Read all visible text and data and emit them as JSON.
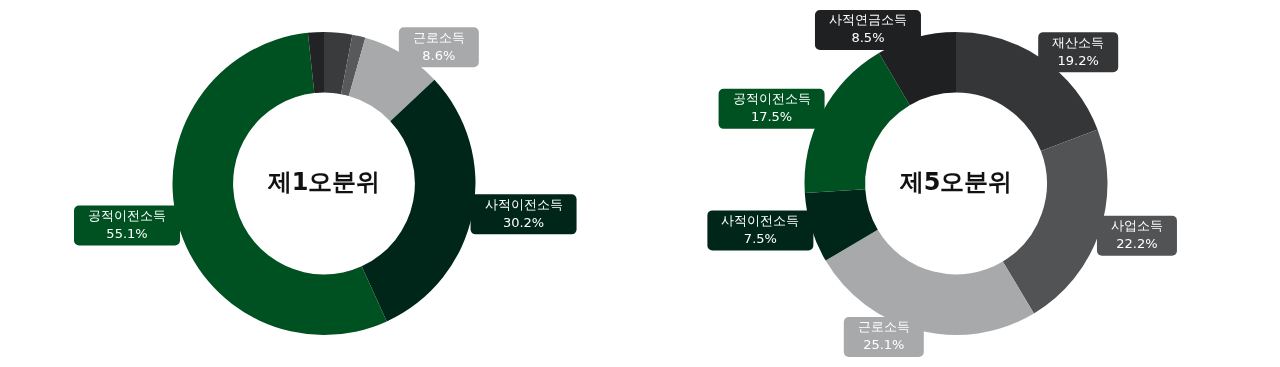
{
  "chart_data": [
    {
      "type": "donut",
      "title": "제1오분위",
      "categories": [
        null,
        null,
        "근로소득",
        "사적이전소득",
        "공적이전소득",
        null
      ],
      "values": [
        3.0,
        1.4,
        8.6,
        30.2,
        55.1,
        1.7
      ],
      "value_labels": [
        null,
        null,
        "8.6%",
        "30.2%",
        "55.1%",
        null
      ],
      "colors": [
        "#3a3b3d",
        "#58595b",
        "#a7a9ab",
        "#00261a",
        "#005121",
        "#222325"
      ],
      "legend": false
    },
    {
      "type": "donut",
      "title": "제5오분위",
      "categories": [
        "재산소득",
        "사업소득",
        "근로소득",
        "사적이전소득",
        "공적이전소득",
        "사적연금소득"
      ],
      "values": [
        19.2,
        22.2,
        25.1,
        7.5,
        17.5,
        8.5
      ],
      "value_labels": [
        "19.2%",
        "22.2%",
        "25.1%",
        "7.5%",
        "17.5%",
        "8.5%"
      ],
      "colors": [
        "#353638",
        "#525355",
        "#a7a9ab",
        "#00261a",
        "#005121",
        "#1f2022"
      ],
      "legend": false
    }
  ]
}
